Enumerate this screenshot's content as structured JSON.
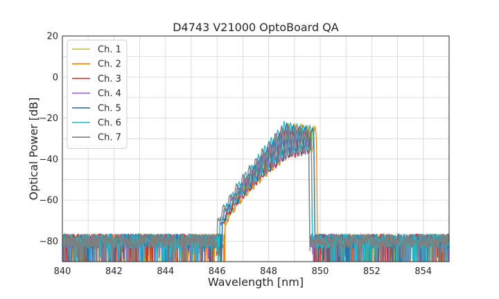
{
  "chart_data": {
    "type": "line",
    "title": "D4743 V21000 OptoBoard QA",
    "xlabel": "Wavelength [nm]",
    "ylabel": "Optical Power [dB]",
    "xlim": [
      840,
      855
    ],
    "ylim": [
      -90,
      20
    ],
    "xticks": [
      840,
      842,
      844,
      846,
      848,
      850,
      852,
      854
    ],
    "yticks": [
      20,
      0,
      -20,
      -40,
      -60,
      -80
    ],
    "grid": true,
    "legend_position": "top-left",
    "noise_floor_dB": -80,
    "series": [
      {
        "name": "Ch. 1",
        "color": "#bcbd22",
        "shift_nm": 0.15,
        "band_nm": [
          846.3,
          849.8
        ],
        "peak_dB": -22
      },
      {
        "name": "Ch. 2",
        "color": "#ff7f0e",
        "shift_nm": 0.2,
        "band_nm": [
          846.3,
          849.9
        ],
        "peak_dB": -23
      },
      {
        "name": "Ch. 3",
        "color": "#d62728",
        "shift_nm": 0.05,
        "band_nm": [
          846.2,
          849.7
        ],
        "peak_dB": -24
      },
      {
        "name": "Ch. 4",
        "color": "#9467bd",
        "shift_nm": -0.05,
        "band_nm": [
          846.1,
          849.6
        ],
        "peak_dB": -24
      },
      {
        "name": "Ch. 5",
        "color": "#1f77b4",
        "shift_nm": 0.1,
        "band_nm": [
          846.2,
          849.8
        ],
        "peak_dB": -23
      },
      {
        "name": "Ch. 6",
        "color": "#17becf",
        "shift_nm": 0.0,
        "band_nm": [
          846.1,
          849.7
        ],
        "peak_dB": -22
      },
      {
        "name": "Ch. 7",
        "color": "#7f7f7f",
        "shift_nm": -0.1,
        "band_nm": [
          846.0,
          849.6
        ],
        "peak_dB": -24
      }
    ]
  }
}
